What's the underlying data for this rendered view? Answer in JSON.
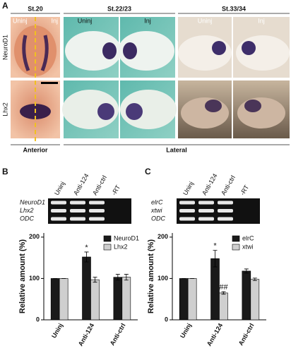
{
  "panel_a": {
    "label": "A",
    "stages": [
      "St.20",
      "St.22/23",
      "St.33/34"
    ],
    "uninj": "Uninj",
    "inj": "Inj",
    "rows": [
      "NeuroD1",
      "Lhx2"
    ],
    "views": [
      "Anterior",
      "Lateral"
    ]
  },
  "panel_b": {
    "label": "B",
    "lanes": [
      "Uninj",
      "Anti-124",
      "Anti-ctrl",
      "-RT"
    ],
    "genes": [
      "NeuroD1",
      "Lhx2",
      "ODC"
    ]
  },
  "panel_c": {
    "label": "C",
    "lanes": [
      "Uninj",
      "Anti-124",
      "Anti-ctrl",
      "-RT"
    ],
    "genes": [
      "elrC",
      "xtwi",
      "ODC"
    ]
  },
  "chart_data": [
    {
      "type": "bar",
      "y_label": "Relative amount (%)",
      "categories": [
        "Uninj",
        "Anti-124",
        "Anti-ctrl"
      ],
      "series": [
        {
          "name": "NeuroD1",
          "color": "#1a1a1a",
          "values": [
            100,
            152,
            103
          ],
          "errors": [
            0,
            12,
            7
          ]
        },
        {
          "name": "Lhx2",
          "color": "#cfcfcf",
          "values": [
            100,
            97,
            103
          ],
          "errors": [
            0,
            6,
            7
          ]
        }
      ],
      "annotations": [
        "*"
      ],
      "ylim": [
        0,
        210
      ],
      "yticks": [
        0,
        100,
        200
      ],
      "legend": "upper-right"
    },
    {
      "type": "bar",
      "y_label": "Relative amount (%)",
      "categories": [
        "Uninj",
        "Anti-124",
        "Anti-ctrl"
      ],
      "series": [
        {
          "name": "elrC",
          "color": "#1a1a1a",
          "values": [
            100,
            148,
            118
          ],
          "errors": [
            0,
            20,
            5
          ]
        },
        {
          "name": "xtwi",
          "color": "#cfcfcf",
          "values": [
            100,
            65,
            98
          ],
          "errors": [
            0,
            3,
            3
          ]
        }
      ],
      "annotations": [
        "*",
        "##"
      ],
      "ylim": [
        0,
        210
      ],
      "yticks": [
        0,
        100,
        200
      ],
      "legend": "upper-right"
    }
  ]
}
